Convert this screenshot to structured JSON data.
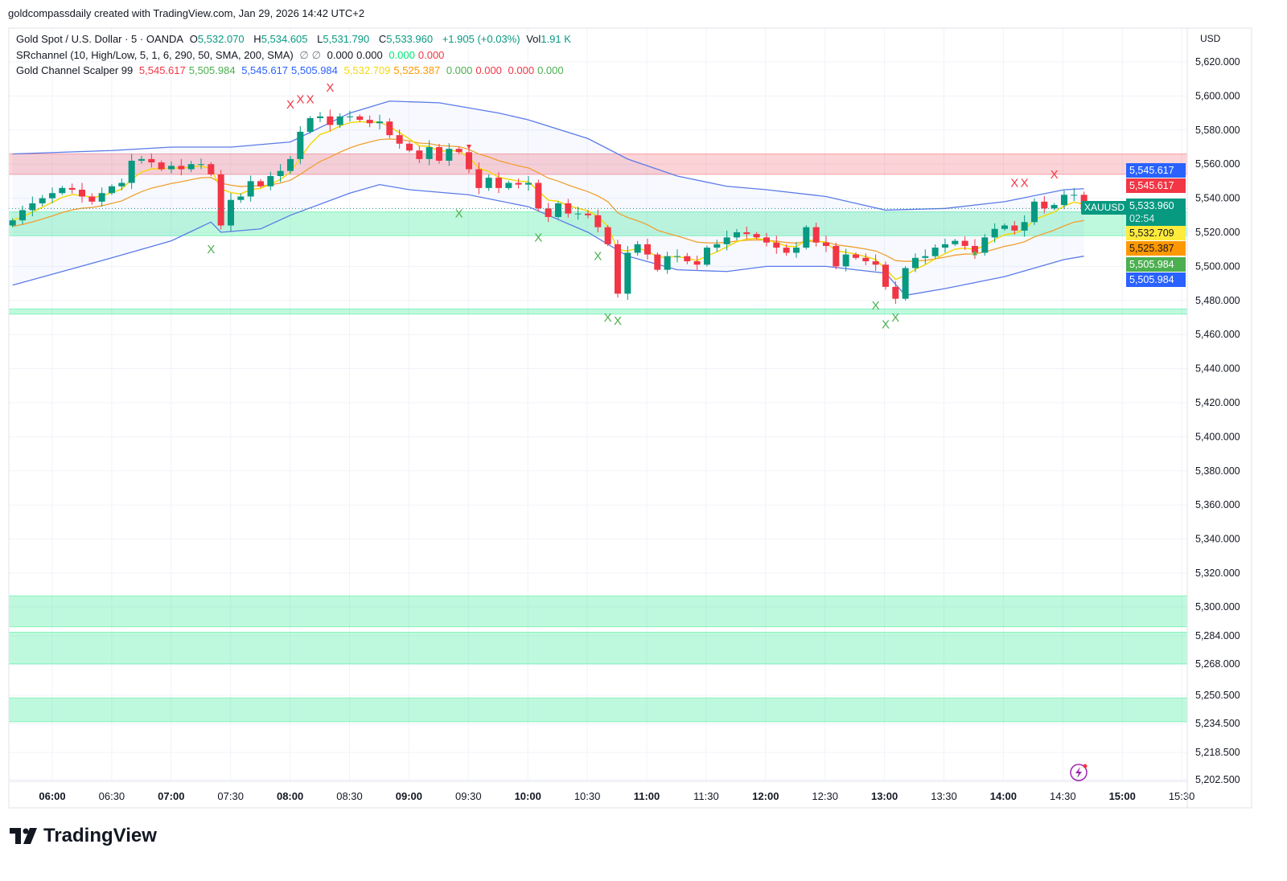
{
  "attribution": "goldcompassdaily created with TradingView.com, Jan 29, 2026 14:42 UTC+2",
  "legend": {
    "symbol": "Gold Spot / U.S. Dollar · 5 · OANDA",
    "o_label": "O",
    "o": "5,532.070",
    "h_label": "H",
    "h": "5,534.605",
    "l_label": "L",
    "l": "5,531.790",
    "c_label": "C",
    "c": "5,533.960",
    "change": "+1.905 (+0.03%)",
    "vol_label": "Vol",
    "vol": "1.91 K",
    "ind1_name": "SRchannel (10, High/Low, 5, 1, 6, 290, 50, SMA, 200, SMA)",
    "ind1_vals": [
      "∅",
      "∅",
      "0.000",
      "0.000",
      "0.000",
      "0.000"
    ],
    "ind2_name": "Gold Channel Scalper 99",
    "ind2_vals": [
      "5,545.617",
      "5,505.984",
      "5,545.617",
      "5,505.984",
      "5,532.709",
      "5,525.387",
      "0.000",
      "0.000",
      "0.000",
      "0.000"
    ]
  },
  "currency": "USD",
  "symbol_tag": "XAUUSD",
  "price_tags": [
    {
      "text": "5,545.617",
      "color": "#2962ff"
    },
    {
      "text": "5,545.617",
      "color": "#f23645"
    },
    {
      "text": "5,533.960",
      "sub": "02:54",
      "color": "#089981"
    },
    {
      "text": "5,532.709",
      "color": "#ffeb3b"
    },
    {
      "text": "5,525.387",
      "color": "#ff9800"
    },
    {
      "text": "5,505.984",
      "color": "#4caf50"
    },
    {
      "text": "5,505.984",
      "color": "#2962ff"
    }
  ],
  "brand": "TradingView",
  "chart_data": {
    "type": "candlestick",
    "interval_minutes": 5,
    "start_time": "05:40",
    "closes": [
      5527,
      5533,
      5537,
      5540,
      5543,
      5546,
      5545,
      5541,
      5538,
      5543,
      5547,
      5549,
      5562,
      5563,
      5561,
      5557,
      5559,
      5557,
      5560,
      5560,
      5554,
      5524,
      5539,
      5541,
      5550,
      5547,
      5553,
      5556,
      5563,
      5579,
      5587,
      5588,
      5583,
      5588,
      5588,
      5586,
      5584,
      5585,
      5577,
      5572,
      5568,
      5563,
      5570,
      5562,
      5569,
      5567,
      5557,
      5546,
      5552,
      5546,
      5549,
      5548,
      5549,
      5534,
      5529,
      5537,
      5531,
      5531,
      5530,
      5523,
      5513,
      5484,
      5508,
      5513,
      5507,
      5498,
      5506,
      5506,
      5503,
      5501,
      5511,
      5513,
      5517,
      5520,
      5519,
      5517,
      5514,
      5511,
      5508,
      5511,
      5523,
      5514,
      5512,
      5500,
      5507,
      5505,
      5503,
      5501,
      5488,
      5481,
      5499,
      5505,
      5506,
      5511,
      5513,
      5515,
      5512,
      5508,
      5517,
      5522,
      5524,
      5521,
      5526,
      5538,
      5534,
      5536,
      5542,
      5542,
      5534
    ],
    "last_price": 5533.96,
    "y_ticks": [
      "5,620.000",
      "5,600.000",
      "5,580.000",
      "5,560.000",
      "5,540.000",
      "5,520.000",
      "5,500.000",
      "5,480.000",
      "5,460.000",
      "5,440.000",
      "5,420.000",
      "5,400.000",
      "5,380.000",
      "5,360.000",
      "5,340.000",
      "5,320.000",
      "5,300.000",
      "5,284.000",
      "5,268.000",
      "5,250.500",
      "5,234.500",
      "5,218.500",
      "5,202.500"
    ],
    "y_tick_values": [
      5620,
      5600,
      5580,
      5560,
      5540,
      5520,
      5500,
      5480,
      5460,
      5440,
      5420,
      5400,
      5380,
      5360,
      5340,
      5320,
      5300,
      5284,
      5268,
      5250.5,
      5234.5,
      5218.5,
      5202.5
    ],
    "x_ticks": [
      {
        "t": "06:00",
        "bold": true
      },
      {
        "t": "06:30"
      },
      {
        "t": "07:00",
        "bold": true
      },
      {
        "t": "07:30"
      },
      {
        "t": "08:00",
        "bold": true
      },
      {
        "t": "08:30"
      },
      {
        "t": "09:00",
        "bold": true
      },
      {
        "t": "09:30"
      },
      {
        "t": "10:00",
        "bold": true
      },
      {
        "t": "10:30"
      },
      {
        "t": "11:00",
        "bold": true
      },
      {
        "t": "11:30"
      },
      {
        "t": "12:00",
        "bold": true
      },
      {
        "t": "12:30"
      },
      {
        "t": "13:00",
        "bold": true
      },
      {
        "t": "13:30"
      },
      {
        "t": "14:00",
        "bold": true
      },
      {
        "t": "14:30"
      },
      {
        "t": "15:00",
        "bold": true
      },
      {
        "t": "15:30"
      }
    ],
    "upper_band": [
      [
        "05:40",
        5566
      ],
      [
        "06:30",
        5568
      ],
      [
        "07:00",
        5570
      ],
      [
        "07:30",
        5570
      ],
      [
        "08:00",
        5573
      ],
      [
        "08:30",
        5590
      ],
      [
        "08:50",
        5597
      ],
      [
        "09:15",
        5596
      ],
      [
        "09:45",
        5590
      ],
      [
        "10:00",
        5586
      ],
      [
        "10:30",
        5575
      ],
      [
        "10:50",
        5563
      ],
      [
        "11:15",
        5553
      ],
      [
        "11:40",
        5547
      ],
      [
        "12:00",
        5545
      ],
      [
        "12:30",
        5541
      ],
      [
        "13:00",
        5533
      ],
      [
        "13:30",
        5534
      ],
      [
        "14:00",
        5538
      ],
      [
        "14:30",
        5545
      ],
      [
        "14:40",
        5545.6
      ]
    ],
    "lower_band": [
      [
        "05:40",
        5489
      ],
      [
        "06:30",
        5505
      ],
      [
        "07:00",
        5515
      ],
      [
        "07:20",
        5526
      ],
      [
        "07:25",
        5520
      ],
      [
        "07:45",
        5522
      ],
      [
        "08:00",
        5530
      ],
      [
        "08:30",
        5543
      ],
      [
        "08:45",
        5548
      ],
      [
        "09:00",
        5545
      ],
      [
        "09:30",
        5542
      ],
      [
        "10:00",
        5535
      ],
      [
        "10:30",
        5520
      ],
      [
        "10:50",
        5506
      ],
      [
        "11:15",
        5498
      ],
      [
        "11:40",
        5497
      ],
      [
        "12:00",
        5500
      ],
      [
        "12:30",
        5500
      ],
      [
        "13:00",
        5496
      ],
      [
        "13:10",
        5483
      ],
      [
        "13:30",
        5487
      ],
      [
        "14:00",
        5494
      ],
      [
        "14:30",
        5504
      ],
      [
        "14:40",
        5506
      ]
    ],
    "zones": [
      {
        "from": 5554,
        "to": 5566,
        "color": "#f23645"
      },
      {
        "from": 5518,
        "to": 5532,
        "color": "#00e676"
      },
      {
        "from": 5472,
        "to": 5475,
        "color": "#00e676"
      },
      {
        "from": 5289,
        "to": 5306.5,
        "color": "#00e676"
      },
      {
        "from": 5268,
        "to": 5286,
        "color": "#00e676"
      },
      {
        "from": 5235.5,
        "to": 5249,
        "color": "#00e676"
      }
    ],
    "markers": [
      {
        "time": "08:00",
        "price": 5595,
        "kind": "x",
        "color": "#f23645"
      },
      {
        "time": "08:05",
        "price": 5598,
        "kind": "x",
        "color": "#f23645"
      },
      {
        "time": "08:10",
        "price": 5598,
        "kind": "x",
        "color": "#f23645"
      },
      {
        "time": "08:20",
        "price": 5605,
        "kind": "x",
        "color": "#f23645"
      },
      {
        "time": "14:05",
        "price": 5549,
        "kind": "x",
        "color": "#f23645"
      },
      {
        "time": "14:10",
        "price": 5549,
        "kind": "x",
        "color": "#f23645"
      },
      {
        "time": "14:25",
        "price": 5554,
        "kind": "x",
        "color": "#f23645"
      },
      {
        "time": "07:20",
        "price": 5510,
        "kind": "x",
        "color": "#4caf50"
      },
      {
        "time": "09:25",
        "price": 5531,
        "kind": "x",
        "color": "#4caf50"
      },
      {
        "time": "10:05",
        "price": 5517,
        "kind": "x",
        "color": "#4caf50"
      },
      {
        "time": "10:35",
        "price": 5506,
        "kind": "x",
        "color": "#4caf50"
      },
      {
        "time": "10:40",
        "price": 5470,
        "kind": "x",
        "color": "#4caf50"
      },
      {
        "time": "10:45",
        "price": 5468,
        "kind": "x",
        "color": "#4caf50"
      },
      {
        "time": "12:55",
        "price": 5477,
        "kind": "x",
        "color": "#4caf50"
      },
      {
        "time": "13:00",
        "price": 5466,
        "kind": "x",
        "color": "#4caf50"
      },
      {
        "time": "13:05",
        "price": 5470,
        "kind": "x",
        "color": "#4caf50"
      },
      {
        "time": "09:30",
        "price": 5570,
        "kind": "down",
        "color": "#f23645"
      },
      {
        "time": "13:45",
        "price": 5508,
        "kind": "up",
        "color": "#4caf50"
      }
    ],
    "colors": {
      "up": "#089981",
      "down": "#f23645",
      "band": "#5b7be8",
      "fast_ma": "#f5d90a",
      "slow_ma": "#f0a030"
    },
    "grid": true
  }
}
